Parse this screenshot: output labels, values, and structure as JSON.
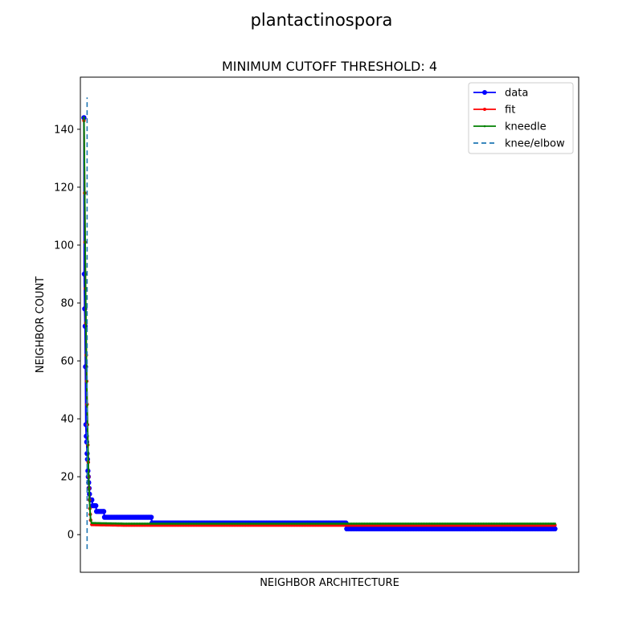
{
  "chart_data": {
    "type": "line",
    "suptitle": "plantactinospora",
    "title": "MINIMUM CUTOFF THRESHOLD: 4",
    "xlabel": "NEIGHBOR ARCHITECTURE",
    "ylabel": "NEIGHBOR COUNT",
    "xlim": [
      -9,
      1250
    ],
    "ylim": [
      -13,
      158
    ],
    "x_ticks_shown": false,
    "yticks": [
      0,
      20,
      40,
      60,
      80,
      100,
      120,
      140
    ],
    "grid": false,
    "legend_position": "top-right",
    "colors": {
      "data": "#0000ff",
      "fit": "#ff0000",
      "kneedle": "#008000",
      "knee": "#1f77b4"
    },
    "series": [
      {
        "name": "data",
        "style": "solid-line-with-circle-markers",
        "points": [
          [
            0,
            144
          ],
          [
            1,
            90
          ],
          [
            2,
            78
          ],
          [
            3,
            72
          ],
          [
            4,
            58
          ],
          [
            5,
            38
          ],
          [
            6,
            34
          ],
          [
            7,
            32
          ],
          [
            8,
            28
          ],
          [
            9,
            26
          ],
          [
            10,
            22
          ],
          [
            11,
            20
          ],
          [
            12,
            18
          ],
          [
            13,
            16
          ],
          [
            14,
            14
          ],
          [
            16,
            12
          ],
          [
            20,
            12
          ],
          [
            22,
            10
          ],
          [
            30,
            10
          ],
          [
            32,
            8
          ],
          [
            50,
            8
          ],
          [
            52,
            6
          ],
          [
            170,
            6
          ],
          [
            172,
            4
          ],
          [
            662,
            4
          ],
          [
            664,
            2
          ],
          [
            1190,
            2
          ]
        ]
      },
      {
        "name": "fit",
        "style": "solid-line-with-point-markers",
        "points": [
          [
            0,
            143
          ],
          [
            2,
            118
          ],
          [
            3,
            101
          ],
          [
            4,
            85
          ],
          [
            5,
            73
          ],
          [
            6,
            62
          ],
          [
            7,
            53
          ],
          [
            8,
            45
          ],
          [
            9,
            38
          ],
          [
            10,
            31
          ],
          [
            11,
            25
          ],
          [
            12,
            20
          ],
          [
            13,
            16
          ],
          [
            14,
            12
          ],
          [
            15,
            9
          ],
          [
            16,
            7
          ],
          [
            17,
            5
          ],
          [
            20,
            3.5
          ],
          [
            100,
            3.3
          ],
          [
            400,
            3.3
          ],
          [
            1190,
            3.3
          ]
        ]
      },
      {
        "name": "kneedle",
        "style": "solid-line-with-point-markers",
        "points": [
          [
            0,
            144
          ],
          [
            2,
            118
          ],
          [
            3,
            101
          ],
          [
            4,
            85
          ],
          [
            5,
            73
          ],
          [
            6,
            62
          ],
          [
            7,
            53
          ],
          [
            8,
            45
          ],
          [
            9,
            38
          ],
          [
            10,
            31
          ],
          [
            11,
            25
          ],
          [
            12,
            20
          ],
          [
            13,
            16
          ],
          [
            14,
            12
          ],
          [
            15,
            9
          ],
          [
            16,
            7
          ],
          [
            17,
            5
          ],
          [
            20,
            4
          ],
          [
            100,
            3.8
          ],
          [
            400,
            3.8
          ],
          [
            1190,
            3.8
          ]
        ]
      }
    ],
    "knee": {
      "name": "knee/elbow",
      "style": "dashed-vertical-line",
      "x": 8,
      "ymin": -5,
      "ymax": 151
    }
  }
}
